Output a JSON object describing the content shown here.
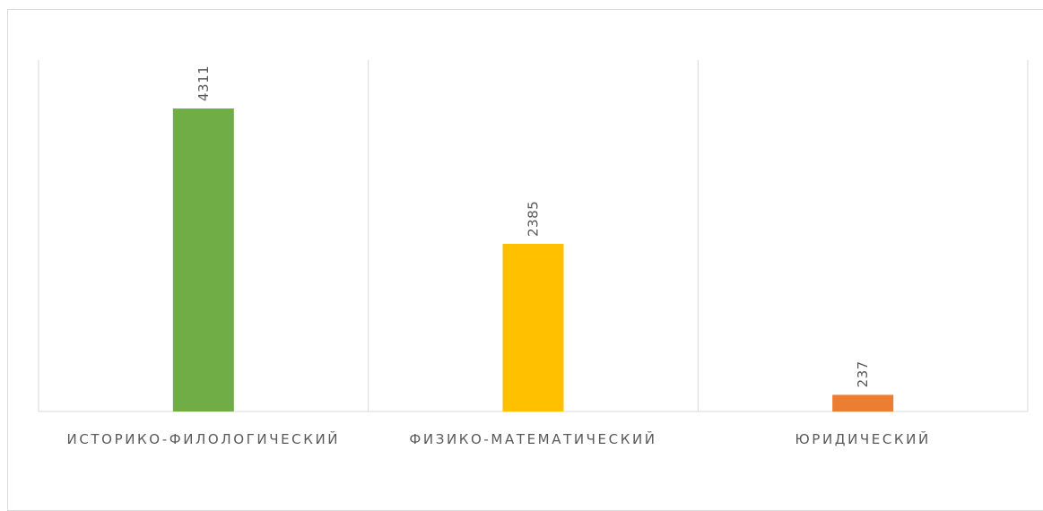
{
  "chart_data": {
    "type": "bar",
    "title": "",
    "xlabel": "",
    "ylabel": "",
    "categories": [
      "ИСТОРИКО-ФИЛОЛОГИЧЕСКИЙ",
      "ФИЗИКО-МАТЕМАТИЧЕСКИЙ",
      "ЮРИДИЧЕСКИЙ"
    ],
    "values": [
      4311,
      2385,
      237
    ],
    "colors": [
      "#70ad47",
      "#ffc000",
      "#ed7d31"
    ],
    "ylim": [
      0,
      5000
    ],
    "grid": false,
    "legend": "none",
    "data_labels": [
      "4311",
      "2385",
      "237"
    ]
  }
}
